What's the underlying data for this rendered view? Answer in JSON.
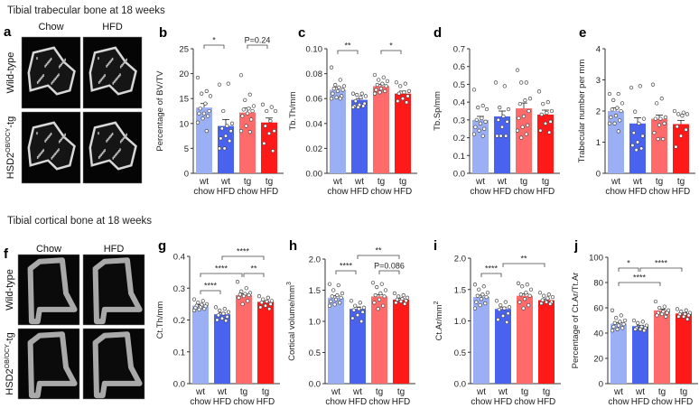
{
  "sections": {
    "trabecular_title": "Tibial trabecular bone at 18 weeks",
    "cortical_title": "Tibial cortical bone at 18 weeks"
  },
  "image_panels": [
    {
      "letter": "a",
      "columns": [
        "Chow",
        "HFD"
      ],
      "rows": [
        {
          "label": "Wild-type",
          "sup": ""
        },
        {
          "label": "HSD2",
          "sup": "OB/OCY",
          "suffix": "-tg"
        }
      ]
    },
    {
      "letter": "f",
      "columns": [
        "Chow",
        "HFD"
      ],
      "rows": [
        {
          "label": "Wild-type",
          "sup": ""
        },
        {
          "label": "HSD2",
          "sup": "OB/OCY",
          "suffix": "-tg"
        }
      ]
    }
  ],
  "colors": {
    "wt_chow": "#9bb0f4",
    "wt_hfd": "#4a63ef",
    "tg_chow": "#ff6b6b",
    "tg_hfd": "#ff1a1a"
  },
  "chart_data": [
    {
      "letter": "b",
      "type": "bar",
      "ylabel": "Percentage of BV/TV",
      "ylabel_sup": "",
      "ylim": [
        0,
        25
      ],
      "yticks": [
        "0",
        "5",
        "10",
        "15",
        "20",
        "25"
      ],
      "ytick_values": [
        0,
        5,
        10,
        15,
        20,
        25
      ],
      "categories": [
        [
          "wt",
          "chow"
        ],
        [
          "wt",
          "HFD"
        ],
        [
          "tg",
          "chow"
        ],
        [
          "tg",
          "HFD"
        ]
      ],
      "values": [
        13.2,
        9.5,
        12.2,
        10.2
      ],
      "sem": [
        0.8,
        1.3,
        0.9,
        0.9
      ],
      "points": [
        [
          19.2,
          16.5,
          16,
          15.5,
          14,
          13,
          12.5,
          12,
          12,
          11.5,
          11,
          10.2,
          8.5
        ],
        [
          17.8,
          18,
          12.5,
          10,
          9.5,
          9,
          8.5,
          7.5,
          7,
          6.5,
          5,
          5
        ],
        [
          19.7,
          15.8,
          14.7,
          13.5,
          13,
          12.8,
          12.5,
          12,
          11.5,
          10.8,
          9.5,
          8.5,
          8.3
        ],
        [
          13.8,
          13.3,
          12.5,
          12.5,
          10.5,
          9.5,
          8.5,
          8,
          6,
          4.5
        ]
      ],
      "significance": [
        {
          "from": 0,
          "to": 1,
          "label": "*",
          "tier": 0
        },
        {
          "from": 2,
          "to": 3,
          "label": "P=0.24",
          "tier": 0
        }
      ]
    },
    {
      "letter": "c",
      "type": "bar",
      "ylabel": "Tb.Th/mm",
      "ylabel_sup": "",
      "ylim": [
        0,
        0.1
      ],
      "yticks": [
        "0.00",
        "0.02",
        "0.04",
        "0.06",
        "0.08",
        "0.10"
      ],
      "ytick_values": [
        0,
        0.02,
        0.04,
        0.06,
        0.08,
        0.1
      ],
      "categories": [
        [
          "wt",
          "chow"
        ],
        [
          "wt",
          "HFD"
        ],
        [
          "tg",
          "chow"
        ],
        [
          "tg",
          "HFD"
        ]
      ],
      "values": [
        0.067,
        0.059,
        0.07,
        0.064
      ],
      "sem": [
        0.002,
        0.001,
        0.0015,
        0.002
      ],
      "points": [
        [
          0.085,
          0.075,
          0.071,
          0.07,
          0.069,
          0.068,
          0.067,
          0.066,
          0.064,
          0.062,
          0.061,
          0.06,
          0.06
        ],
        [
          0.064,
          0.064,
          0.063,
          0.062,
          0.061,
          0.058,
          0.056,
          0.055,
          0.054,
          0.054,
          0.053,
          0.053
        ],
        [
          0.079,
          0.077,
          0.075,
          0.074,
          0.072,
          0.071,
          0.07,
          0.068,
          0.067,
          0.066,
          0.065,
          0.064
        ],
        [
          0.073,
          0.072,
          0.07,
          0.066,
          0.065,
          0.064,
          0.062,
          0.06,
          0.058,
          0.057
        ]
      ],
      "significance": [
        {
          "from": 0,
          "to": 1,
          "label": "**",
          "tier": 0
        },
        {
          "from": 2,
          "to": 3,
          "label": "*",
          "tier": 0
        }
      ]
    },
    {
      "letter": "d",
      "type": "bar",
      "ylabel": "Tb.Sp/mm",
      "ylabel_sup": "",
      "ylim": [
        0,
        0.7
      ],
      "yticks": [
        "0.0",
        "0.1",
        "0.2",
        "0.3",
        "0.4",
        "0.5",
        "0.6",
        "0.7"
      ],
      "ytick_values": [
        0,
        0.1,
        0.2,
        0.3,
        0.4,
        0.5,
        0.6,
        0.7
      ],
      "categories": [
        [
          "wt",
          "chow"
        ],
        [
          "wt",
          "HFD"
        ],
        [
          "tg",
          "chow"
        ],
        [
          "tg",
          "HFD"
        ]
      ],
      "values": [
        0.3,
        0.32,
        0.365,
        0.33
      ],
      "sem": [
        0.02,
        0.03,
        0.03,
        0.025
      ],
      "points": [
        [
          0.47,
          0.38,
          0.37,
          0.36,
          0.31,
          0.3,
          0.29,
          0.28,
          0.26,
          0.25,
          0.24,
          0.22,
          0.21
        ],
        [
          0.51,
          0.49,
          0.37,
          0.36,
          0.32,
          0.3,
          0.29,
          0.26,
          0.21,
          0.21,
          0.21
        ],
        [
          0.58,
          0.51,
          0.51,
          0.42,
          0.41,
          0.39,
          0.35,
          0.32,
          0.31,
          0.27,
          0.26,
          0.24,
          0.22,
          0.2
        ],
        [
          0.46,
          0.4,
          0.39,
          0.35,
          0.34,
          0.33,
          0.29,
          0.28,
          0.24,
          0.23
        ]
      ],
      "significance": []
    },
    {
      "letter": "e",
      "type": "bar",
      "ylabel": "Trabecular number per mm",
      "ylabel_sup": "",
      "ylim": [
        0,
        4
      ],
      "yticks": [
        "0",
        "1",
        "2",
        "3",
        "4"
      ],
      "ytick_values": [
        0,
        1,
        2,
        3,
        4
      ],
      "categories": [
        [
          "wt",
          "chow"
        ],
        [
          "wt",
          "HFD"
        ],
        [
          "tg",
          "chow"
        ],
        [
          "tg",
          "HFD"
        ]
      ],
      "values": [
        2.0,
        1.6,
        1.75,
        1.58
      ],
      "sem": [
        0.1,
        0.18,
        0.12,
        0.12
      ],
      "points": [
        [
          2.55,
          2.55,
          2.35,
          2.25,
          2.1,
          2.05,
          2.0,
          1.85,
          1.8,
          1.7,
          1.6,
          1.6,
          1.35
        ],
        [
          2.75,
          2.8,
          1.98,
          1.75,
          1.6,
          1.3,
          1.2,
          1.0,
          0.9,
          0.8,
          0.75
        ],
        [
          2.85,
          2.4,
          2.25,
          1.8,
          1.75,
          1.75,
          1.6,
          1.55,
          1.3,
          1.1,
          1.1
        ],
        [
          2.0,
          1.95,
          1.9,
          1.9,
          1.85,
          1.5,
          1.4,
          1.2,
          0.85
        ]
      ],
      "significance": []
    },
    {
      "letter": "g",
      "type": "bar",
      "ylabel": "Ct.Th/mm",
      "ylabel_sup": "",
      "ylim": [
        0,
        0.4
      ],
      "yticks": [
        "0.0",
        "0.1",
        "0.2",
        "0.3",
        "0.4"
      ],
      "ytick_values": [
        0,
        0.1,
        0.2,
        0.3,
        0.4
      ],
      "categories": [
        [
          "wt",
          "chow"
        ],
        [
          "wt",
          "HFD"
        ],
        [
          "tg",
          "chow"
        ],
        [
          "tg",
          "HFD"
        ]
      ],
      "values": [
        0.245,
        0.218,
        0.278,
        0.257
      ],
      "sem": [
        0.003,
        0.004,
        0.004,
        0.003
      ],
      "points": [
        [
          0.265,
          0.26,
          0.255,
          0.25,
          0.248,
          0.245,
          0.243,
          0.24,
          0.238,
          0.235,
          0.233,
          0.23
        ],
        [
          0.24,
          0.235,
          0.23,
          0.225,
          0.22,
          0.215,
          0.21,
          0.205,
          0.2,
          0.198
        ],
        [
          0.32,
          0.3,
          0.29,
          0.285,
          0.282,
          0.28,
          0.278,
          0.275,
          0.27,
          0.26,
          0.25
        ],
        [
          0.275,
          0.27,
          0.265,
          0.26,
          0.258,
          0.255,
          0.25,
          0.245,
          0.24,
          0.235
        ]
      ],
      "significance": [
        {
          "from": 0,
          "to": 1,
          "label": "****",
          "tier": 0
        },
        {
          "from": 0,
          "to": 2,
          "label": "****",
          "tier": 1
        },
        {
          "from": 2,
          "to": 3,
          "label": "**",
          "tier": 1
        },
        {
          "from": 1,
          "to": 3,
          "label": "****",
          "tier": 2
        }
      ]
    },
    {
      "letter": "h",
      "type": "bar",
      "ylabel": "Cortical volume/mm",
      "ylabel_sup": "3",
      "ylim": [
        0,
        2.0
      ],
      "yticks": [
        "0.0",
        "0.5",
        "1.0",
        "1.5",
        "2.0"
      ],
      "ytick_values": [
        0,
        0.5,
        1.0,
        1.5,
        2.0
      ],
      "categories": [
        [
          "wt",
          "chow"
        ],
        [
          "wt",
          "HFD"
        ],
        [
          "tg",
          "chow"
        ],
        [
          "tg",
          "HFD"
        ]
      ],
      "values": [
        1.38,
        1.2,
        1.4,
        1.35
      ],
      "sem": [
        0.03,
        0.03,
        0.03,
        0.02
      ],
      "points": [
        [
          1.6,
          1.58,
          1.5,
          1.45,
          1.42,
          1.4,
          1.38,
          1.35,
          1.32,
          1.3,
          1.27,
          1.25
        ],
        [
          1.33,
          1.3,
          1.25,
          1.22,
          1.2,
          1.18,
          1.15,
          1.1,
          1.05,
          1.0
        ],
        [
          1.62,
          1.6,
          1.55,
          1.5,
          1.45,
          1.42,
          1.4,
          1.35,
          1.3,
          1.25,
          1.2
        ],
        [
          1.45,
          1.42,
          1.4,
          1.38,
          1.36,
          1.35,
          1.33,
          1.32,
          1.3,
          1.28
        ]
      ],
      "significance": [
        {
          "from": 0,
          "to": 1,
          "label": "****",
          "tier": 0
        },
        {
          "from": 2,
          "to": 3,
          "label": "P=0.086",
          "tier": 0
        },
        {
          "from": 1,
          "to": 3,
          "label": "**",
          "tier": 1
        }
      ]
    },
    {
      "letter": "i",
      "type": "bar",
      "ylabel": "Ct.Ar/mm",
      "ylabel_sup": "2",
      "ylim": [
        0,
        2.0
      ],
      "yticks": [
        "0.0",
        "0.5",
        "1.0",
        "1.5",
        "2.0"
      ],
      "ytick_values": [
        0,
        0.5,
        1.0,
        1.5,
        2.0
      ],
      "categories": [
        [
          "wt",
          "chow"
        ],
        [
          "wt",
          "HFD"
        ],
        [
          "tg",
          "chow"
        ],
        [
          "tg",
          "HFD"
        ]
      ],
      "values": [
        1.38,
        1.19,
        1.4,
        1.33
      ],
      "sem": [
        0.03,
        0.03,
        0.03,
        0.02
      ],
      "points": [
        [
          1.58,
          1.55,
          1.5,
          1.45,
          1.42,
          1.4,
          1.38,
          1.35,
          1.3,
          1.28,
          1.25,
          1.2
        ],
        [
          1.32,
          1.3,
          1.25,
          1.22,
          1.2,
          1.18,
          1.12,
          1.08,
          1.02,
          0.98
        ],
        [
          1.6,
          1.58,
          1.55,
          1.5,
          1.45,
          1.42,
          1.4,
          1.35,
          1.3,
          1.25,
          1.2
        ],
        [
          1.45,
          1.42,
          1.4,
          1.38,
          1.36,
          1.33,
          1.3,
          1.3,
          1.28,
          1.27
        ]
      ],
      "significance": [
        {
          "from": 0,
          "to": 1,
          "label": "****",
          "tier": 0
        },
        {
          "from": 1,
          "to": 3,
          "label": "**",
          "tier": 1
        }
      ]
    },
    {
      "letter": "j",
      "type": "bar",
      "ylabel": "Percentage of Ct.Ar/Tt.Ar",
      "ylabel_sup": "",
      "ylim": [
        0,
        100
      ],
      "yticks": [
        "0",
        "20",
        "40",
        "60",
        "80",
        "100"
      ],
      "ytick_values": [
        0,
        20,
        40,
        60,
        80,
        100
      ],
      "categories": [
        [
          "wt",
          "chow"
        ],
        [
          "wt",
          "HFD"
        ],
        [
          "tg",
          "chow"
        ],
        [
          "tg",
          "HFD"
        ]
      ],
      "values": [
        47.5,
        45.5,
        58,
        55.5
      ],
      "sem": [
        0.8,
        0.7,
        0.9,
        0.6
      ],
      "points": [
        [
          58,
          54,
          52,
          50,
          49,
          48,
          47,
          46,
          45,
          44,
          43,
          42
        ],
        [
          50,
          49,
          48,
          46,
          45,
          44,
          44,
          43,
          43,
          42
        ],
        [
          65,
          61,
          60,
          58,
          57,
          56,
          56,
          55,
          54,
          53
        ],
        [
          59,
          58,
          57,
          56,
          55,
          55,
          54,
          53,
          53,
          51
        ]
      ],
      "significance": [
        {
          "from": 0,
          "to": 2,
          "label": "****",
          "tier": 0
        },
        {
          "from": 0,
          "to": 1,
          "label": "*",
          "tier": 1
        },
        {
          "from": 1,
          "to": 3,
          "label": "****",
          "tier": 1
        }
      ]
    }
  ]
}
